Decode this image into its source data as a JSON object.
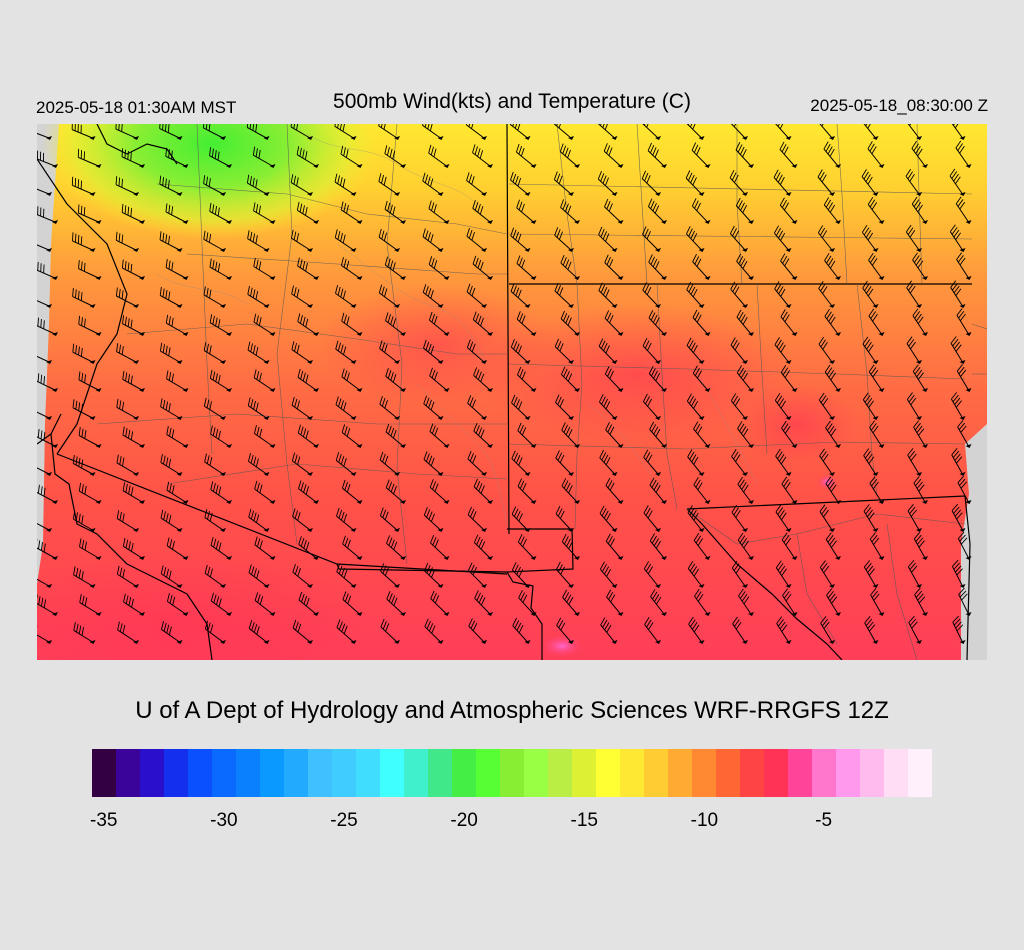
{
  "header": {
    "local_time": "2025-05-18 01:30AM MST",
    "title": "500mb Wind(kts) and Temperature (C)",
    "valid_time": "2025-05-18_08:30:00 Z"
  },
  "map": {
    "background_gray": "#d3d3d3",
    "temperature_gradient": [
      "#44ee33",
      "#ddf033",
      "#ffe830",
      "#ffb038",
      "#ff7c44",
      "#ff5844",
      "#ff3d55",
      "#ff3a60",
      "#ff66b0"
    ],
    "barb_color": "#000000",
    "border_color": "#000000"
  },
  "credit": "U of A Dept of Hydrology and Atmospheric Sciences WRF-RRGFS 12Z",
  "colorbar": {
    "colors": [
      "#330044",
      "#3a0399",
      "#2a10cc",
      "#1430ee",
      "#0a50ff",
      "#0a6aff",
      "#0a80ff",
      "#0a99ff",
      "#22aaff",
      "#40c0ff",
      "#40ccff",
      "#40ddff",
      "#40ffff",
      "#40f0cc",
      "#40e88a",
      "#44ee44",
      "#55ff33",
      "#88ee33",
      "#99ff44",
      "#bbee44",
      "#ddf033",
      "#ffff33",
      "#ffe833",
      "#ffcc33",
      "#ffaa33",
      "#ff8833",
      "#ff6633",
      "#ff4444",
      "#ff3355",
      "#ff4499",
      "#ff77cc",
      "#ff99ee",
      "#ffbbee",
      "#ffddf4",
      "#fff0fc"
    ],
    "ticks": [
      {
        "label": "-35",
        "pos": 0.014
      },
      {
        "label": "-30",
        "pos": 0.157
      },
      {
        "label": "-25",
        "pos": 0.3
      },
      {
        "label": "-20",
        "pos": 0.443
      },
      {
        "label": "-15",
        "pos": 0.586
      },
      {
        "label": "-10",
        "pos": 0.729
      },
      {
        "label": "-5",
        "pos": 0.871
      }
    ]
  }
}
